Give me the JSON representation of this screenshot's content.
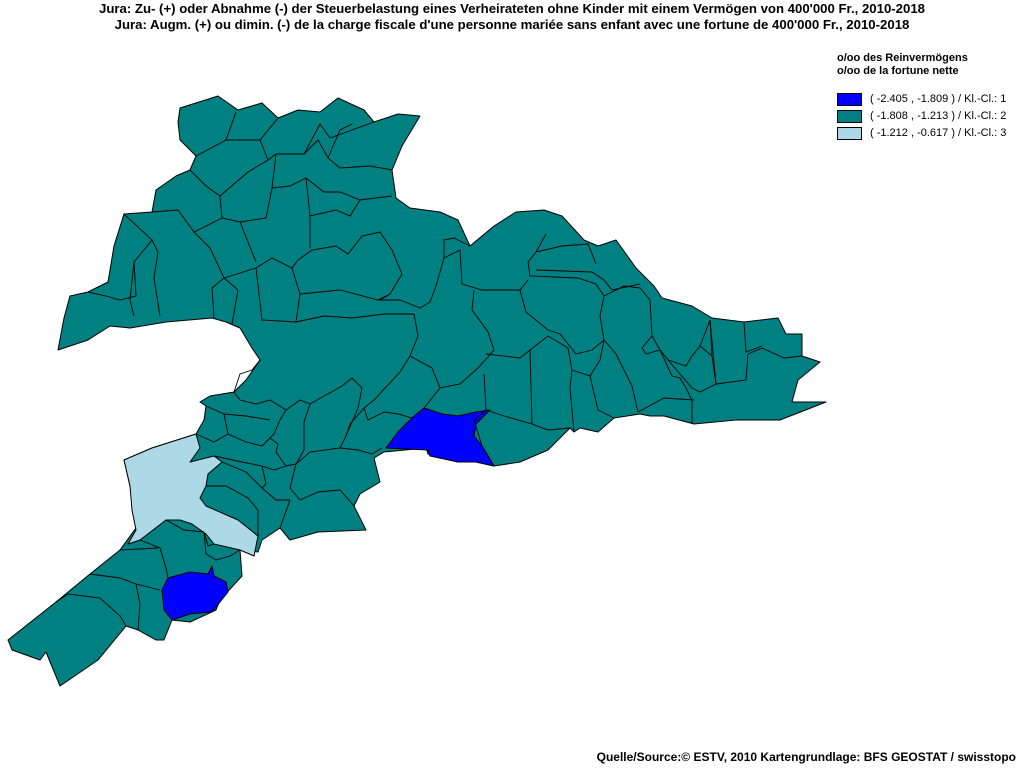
{
  "title": {
    "line1": "Jura: Zu- (+) oder Abnahme (-) der Steuerbelastung  eines Verheirateten ohne Kinder mit einem Vermögen von 400'000 Fr., 2010-2018",
    "line2": "Jura: Augm. (+) ou dimin. (-) de la charge fiscale d'une personne mariée sans enfant avec une fortune de 400'000 Fr., 2010-2018"
  },
  "legend": {
    "unit_de": "o/oo des Reinvermögens",
    "unit_fr": "o/oo de la fortune nette",
    "classes": [
      {
        "label": "( -2.405 , -1.809 ) / Kl.-Cl.: 1",
        "color": "#0000ff"
      },
      {
        "label": "( -1.808 , -1.213 ) / Kl.-Cl.: 2",
        "color": "#008080"
      },
      {
        "label": "( -1.212 , -0.617 ) / Kl.-Cl.: 3",
        "color": "#add8e6"
      }
    ]
  },
  "source": "Quelle/Source:© ESTV, 2010 Kartengrundlage: BFS GEOSTAT / swisstopo"
}
